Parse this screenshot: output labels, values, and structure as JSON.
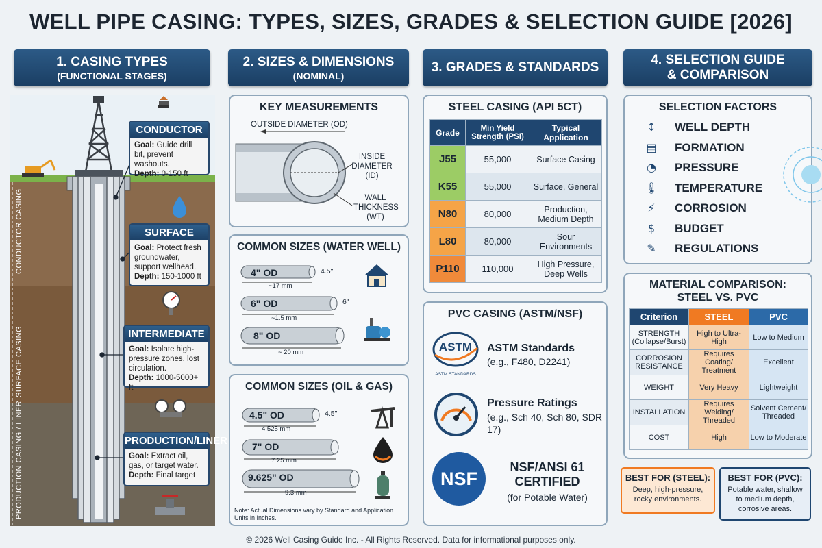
{
  "title": "WELL PIPE CASING: TYPES, SIZES, GRADES & SELECTION GUIDE [2026]",
  "sections": {
    "types": {
      "line1": "1. CASING TYPES",
      "line2": "(FUNCTIONAL STAGES)"
    },
    "sizes": {
      "line1": "2. SIZES & DIMENSIONS",
      "line2": "(NOMINAL)"
    },
    "grades": {
      "line1": "3. GRADES & STANDARDS"
    },
    "selection": {
      "line1": "4. SELECTION GUIDE",
      "line2": "& COMPARISON"
    }
  },
  "casing_labels": {
    "conductor": "CONDUCTOR CASING",
    "surface": "SURFACE CASING",
    "production": "PRODUCTION CASING / LINER"
  },
  "callouts": [
    {
      "title": "CONDUCTOR",
      "goal_label": "Goal:",
      "goal": "Guide drill bit, prevent washouts.",
      "depth_label": "Depth:",
      "depth": "0-150 ft"
    },
    {
      "title": "SURFACE",
      "goal_label": "Goal:",
      "goal": "Protect fresh groundwater, support wellhead.",
      "depth_label": "Depth:",
      "depth": "150-1000 ft"
    },
    {
      "title": "INTERMEDIATE",
      "goal_label": "Goal:",
      "goal": "Isolate high-pressure zones, lost circulation.",
      "depth_label": "Depth:",
      "depth": "1000-5000+ ft"
    },
    {
      "title": "PRODUCTION/LINER",
      "goal_label": "Goal:",
      "goal": "Extract oil, gas, or target water.",
      "depth_label": "Depth:",
      "depth": "Final target"
    }
  ],
  "key_measurements": {
    "title": "KEY MEASUREMENTS",
    "od": "OUTSIDE DIAMETER (OD)",
    "id": "INSIDE DIAMETER (ID)",
    "wt": "WALL THICKNESS (WT)"
  },
  "water_sizes": {
    "title": "COMMON SIZES (WATER WELL)",
    "pipes": [
      {
        "label": "4\" OD",
        "height": "4.5\"",
        "length": "~17 mm"
      },
      {
        "label": "6\" OD",
        "height": "6\"",
        "length": "~1.5 mm"
      },
      {
        "label": "8\" OD",
        "height": "",
        "length": "~ 20 mm"
      }
    ]
  },
  "oil_sizes": {
    "title": "COMMON SIZES (OIL & GAS)",
    "pipes": [
      {
        "label": "4.5\" OD",
        "height": "4.5\"",
        "length": "4.525 mm"
      },
      {
        "label": "7\" OD",
        "height": "",
        "length": "7.25 mm"
      },
      {
        "label": "9.625\" OD",
        "height": "",
        "length": "9.3 mm"
      }
    ],
    "note": "Note: Actual Dimensions vary by Standard and Application. Units in Inches."
  },
  "steel_casing": {
    "title": "STEEL CASING (API 5CT)",
    "headers": [
      "Grade",
      "Min Yield Strength (PSI)",
      "Typical Application"
    ],
    "rows": [
      {
        "grade": "J55",
        "psi": "55,000",
        "app": "Surface Casing",
        "color": "#9ccc65"
      },
      {
        "grade": "K55",
        "psi": "55,000",
        "app": "Surface, General",
        "color": "#9ccc65"
      },
      {
        "grade": "N80",
        "psi": "80,000",
        "app": "Production, Medium Depth",
        "color": "#f5a447"
      },
      {
        "grade": "L80",
        "psi": "80,000",
        "app": "Sour Environments",
        "color": "#f5a447"
      },
      {
        "grade": "P110",
        "psi": "110,000",
        "app": "High Pressure, Deep Wells",
        "color": "#f08a3a"
      }
    ]
  },
  "pvc_casing": {
    "title": "PVC CASING (ASTM/NSF)",
    "astm_logo": "ASTM",
    "astm_logo_sub": "ASTM STANDARDS",
    "astm_title": "ASTM Standards",
    "astm_desc": "(e.g., F480, D2241)",
    "pressure_title": "Pressure Ratings",
    "pressure_desc": "(e.g., Sch 40, Sch 80, SDR 17)",
    "nsf_logo": "NSF",
    "nsf_title1": "NSF/ANSI 61",
    "nsf_title2": "CERTIFIED",
    "nsf_desc": "(for Potable Water)"
  },
  "selection_factors": {
    "title": "SELECTION FACTORS",
    "items": [
      "WELL DEPTH",
      "FORMATION",
      "PRESSURE",
      "TEMPERATURE",
      "CORROSION",
      "BUDGET",
      "REGULATIONS"
    ]
  },
  "material_comparison": {
    "title1": "MATERIAL COMPARISON:",
    "title2": "STEEL VS. PVC",
    "headers": [
      "Criterion",
      "STEEL",
      "PVC"
    ],
    "rows": [
      {
        "criterion": "STRENGTH (Collapse/Burst)",
        "steel": "High to Ultra-High",
        "pvc": "Low to Medium"
      },
      {
        "criterion": "CORROSION RESISTANCE",
        "steel": "Requires Coating/ Treatment",
        "pvc": "Excellent"
      },
      {
        "criterion": "WEIGHT",
        "steel": "Very Heavy",
        "pvc": "Lightweight"
      },
      {
        "criterion": "INSTALLATION",
        "steel": "Requires Welding/ Threaded",
        "pvc": "Solvent Cement/ Threaded"
      },
      {
        "criterion": "COST",
        "steel": "High",
        "pvc": "Low to Moderate"
      }
    ]
  },
  "best_for_steel": {
    "title": "BEST FOR (STEEL):",
    "desc": "Deep, high-pressure, rocky environments."
  },
  "best_for_pvc": {
    "title": "BEST FOR (PVC):",
    "desc": "Potable water, shallow to medium depth, corrosive areas."
  },
  "footer": "© 2026 Well Casing Guide Inc. - All Rights Reserved. Data for informational purposes only.",
  "colors": {
    "header": "#1f4670",
    "steel": "#f5c9a0",
    "pvc": "#d7e6f4",
    "accent": "#f07a22"
  }
}
